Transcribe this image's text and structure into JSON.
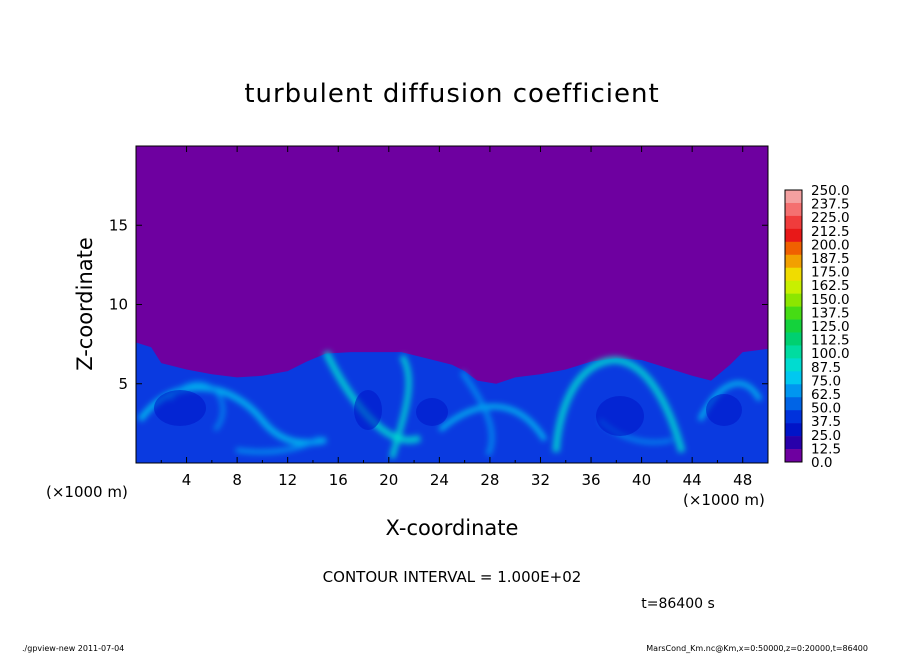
{
  "chart_data": {
    "type": "heatmap",
    "title": "turbulent diffusion coefficient",
    "xlabel": "X-coordinate",
    "ylabel": "Z-coordinate",
    "x_unit": "(×1000 m)",
    "y_unit": "(×1000 m)",
    "xlim": [
      0,
      50
    ],
    "ylim": [
      0,
      20
    ],
    "x_ticks": [
      "4",
      "8",
      "12",
      "16",
      "20",
      "24",
      "28",
      "32",
      "36",
      "40",
      "44",
      "48"
    ],
    "y_ticks": [
      "5",
      "10",
      "15"
    ],
    "colorbar": {
      "levels": [
        "250.0",
        "237.5",
        "225.0",
        "212.5",
        "200.0",
        "187.5",
        "175.0",
        "162.5",
        "150.0",
        "137.5",
        "125.0",
        "112.5",
        "100.0",
        "87.5",
        "75.0",
        "62.5",
        "50.0",
        "37.5",
        "25.0",
        "12.5",
        "0.0"
      ],
      "colors": [
        "#f4a0a0",
        "#f47070",
        "#f03c3c",
        "#e81818",
        "#f06000",
        "#f2a000",
        "#f0dc00",
        "#c8f000",
        "#8ce600",
        "#46dc14",
        "#14d23c",
        "#00d070",
        "#00dca0",
        "#00dcd0",
        "#00c8f0",
        "#0096f0",
        "#0064e6",
        "#0032dc",
        "#0014c8",
        "#2800aa",
        "#6e00a0"
      ]
    },
    "boundary_top": [
      [
        0,
        7.6
      ],
      [
        1.2,
        7.3
      ],
      [
        2,
        6.3
      ],
      [
        4,
        5.9
      ],
      [
        6,
        5.6
      ],
      [
        8,
        5.4
      ],
      [
        10,
        5.5
      ],
      [
        12,
        5.8
      ],
      [
        13.5,
        6.4
      ],
      [
        15,
        6.9
      ],
      [
        17,
        7.0
      ],
      [
        19,
        7.0
      ],
      [
        21,
        7.0
      ],
      [
        23,
        6.6
      ],
      [
        25,
        6.2
      ],
      [
        26,
        5.8
      ],
      [
        27,
        5.2
      ],
      [
        28.5,
        5.0
      ],
      [
        30,
        5.4
      ],
      [
        32,
        5.6
      ],
      [
        34,
        5.9
      ],
      [
        36,
        6.4
      ],
      [
        38,
        6.6
      ],
      [
        40,
        6.5
      ],
      [
        42,
        6.0
      ],
      [
        44,
        5.5
      ],
      [
        45.5,
        5.2
      ],
      [
        47,
        6.2
      ],
      [
        48,
        7.0
      ],
      [
        50,
        7.2
      ]
    ],
    "background_value": "0.0",
    "contour_interval": "CONTOUR INTERVAL = 1.000E+02",
    "time": "t=86400 s"
  },
  "footer": {
    "left": "./gpview-new   2011-07-04",
    "right": "MarsCond_Km.nc@Km,x=0:50000,z=0:20000,t=86400"
  }
}
